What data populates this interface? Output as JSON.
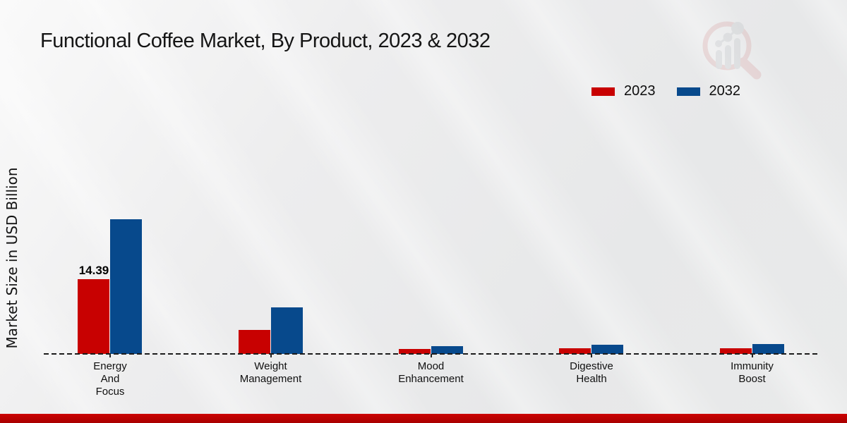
{
  "chart_data": {
    "type": "bar",
    "title": "Functional Coffee Market, By Product, 2023 & 2032",
    "xlabel": "",
    "ylabel": "Market Size in USD Billion",
    "categories": [
      "Energy And Focus",
      "Weight Management",
      "Mood Enhancement",
      "Digestive Health",
      "Immunity Boost"
    ],
    "categories_multiline": [
      "Energy\nAnd\nFocus",
      "Weight\nManagement",
      "Mood\nEnhancement",
      "Digestive\nHealth",
      "Immunity\nBoost"
    ],
    "series": [
      {
        "name": "2023",
        "color": "#c80101",
        "values": [
          14.39,
          4.6,
          0.95,
          1.05,
          1.1
        ]
      },
      {
        "name": "2032",
        "color": "#07498c",
        "values": [
          25.9,
          9.0,
          1.55,
          1.75,
          1.9
        ]
      }
    ],
    "annotations": [
      {
        "series": "2023",
        "category_index": 0,
        "text": "14.39"
      }
    ],
    "ylim": [
      0,
      28
    ],
    "grid": false,
    "legend_position": "top-right",
    "baseline_style": "dashed"
  },
  "branding": {
    "watermark_icon": "magnifier-growth-chart-logo",
    "bottom_bar_color": "#c00000"
  }
}
